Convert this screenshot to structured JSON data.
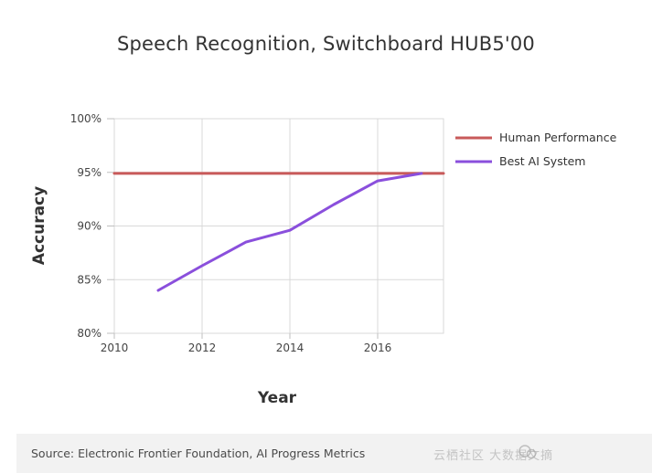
{
  "chart_data": {
    "type": "line",
    "title": "Speech Recognition, Switchboard HUB5'00",
    "xlabel": "Year",
    "ylabel": "Accuracy",
    "xlim": [
      2010,
      2017.5
    ],
    "ylim": [
      80,
      100
    ],
    "x_ticks": [
      2010,
      2012,
      2014,
      2016
    ],
    "y_ticks": [
      "80%",
      "85%",
      "90%",
      "95%",
      "100%"
    ],
    "y_tick_values": [
      80,
      85,
      90,
      95,
      100
    ],
    "grid": true,
    "legend_position": "right",
    "series": [
      {
        "name": "Human Performance",
        "color": "#c85a5a",
        "x": [
          2010,
          2017.5
        ],
        "y": [
          94.9,
          94.9
        ]
      },
      {
        "name": "Best AI System",
        "color": "#8a4fdc",
        "x": [
          2011,
          2012,
          2013,
          2014,
          2015,
          2016,
          2017
        ],
        "y": [
          84.0,
          86.3,
          88.5,
          89.6,
          92.0,
          94.2,
          94.9
        ]
      }
    ]
  },
  "footer": {
    "source": "Source: Electronic Frontier Foundation, AI Progress Metrics",
    "watermark": "云栖社区 大数据文摘"
  }
}
